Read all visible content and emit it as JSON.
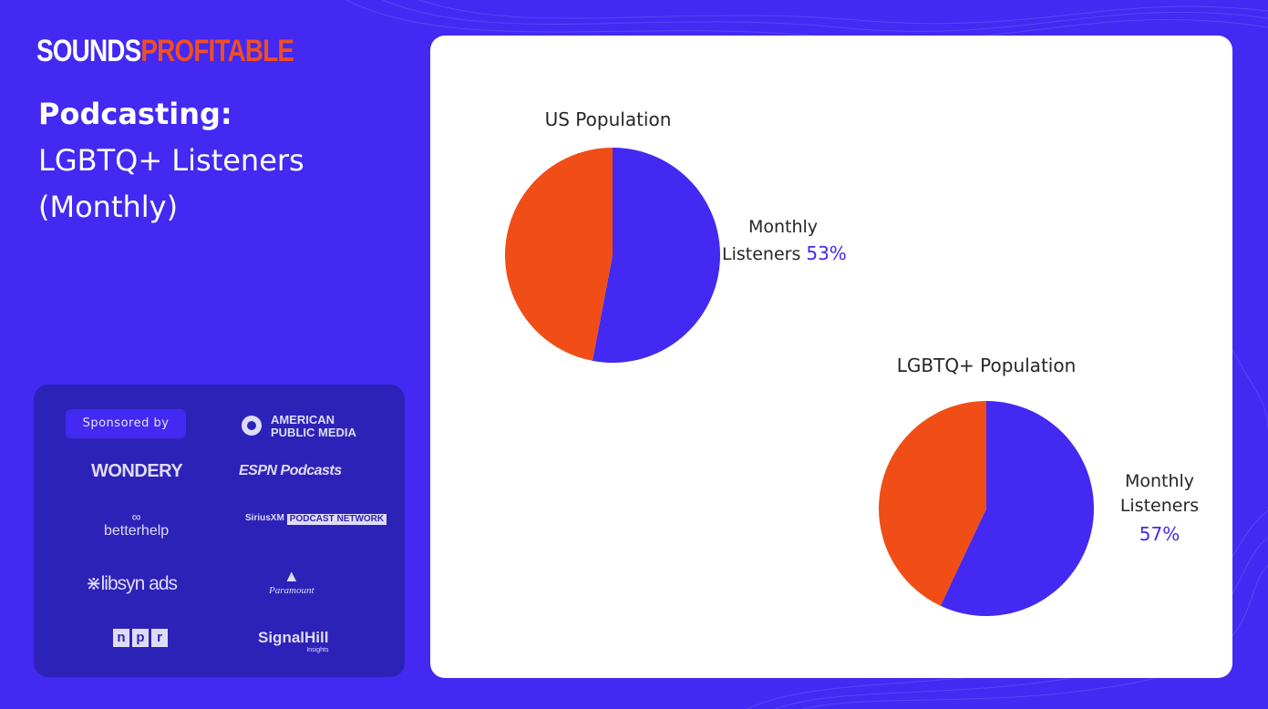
{
  "brand": {
    "part1": "SOUNDS",
    "part2": "PROFITABLE",
    "color_primary": "#4329f2",
    "color_accent": "#f04e23"
  },
  "heading": {
    "line1": "Podcasting:",
    "line2": "LGBTQ+ Listeners",
    "line3": "(Monthly)"
  },
  "sponsors": {
    "label": "Sponsored by",
    "apm_line1": "AMERICAN",
    "apm_line2": "PUBLIC MEDIA",
    "wondery": "WONDERY",
    "espn": "ESPN Podcasts",
    "betterhelp": "betterhelp",
    "sirius": "SiriusXM",
    "sirius_net": "PODCAST NETWORK",
    "libsyn": "libsyn ads",
    "paramount": "Paramount",
    "npr": [
      "n",
      "p",
      "r"
    ],
    "signal": "SignalHill",
    "signal_sub": "Insights"
  },
  "chart_data": [
    {
      "type": "pie",
      "title": "US Population",
      "slices": [
        {
          "label": "Monthly Listeners",
          "value": 53,
          "color": "#4329f2"
        },
        {
          "label": "",
          "value": 47,
          "color": "#f04e16"
        }
      ],
      "label_line1": "Monthly",
      "label_line2": "Listeners",
      "value_text": "53%"
    },
    {
      "type": "pie",
      "title": "LGBTQ+ Population",
      "slices": [
        {
          "label": "Monthly Listeners",
          "value": 57,
          "color": "#4329f2"
        },
        {
          "label": "",
          "value": 43,
          "color": "#f04e16"
        }
      ],
      "label_line1": "Monthly",
      "label_line2": "Listeners",
      "value_text": "57%"
    }
  ]
}
